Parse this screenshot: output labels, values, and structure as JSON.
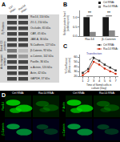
{
  "chart_data": [
    {
      "type": "blot",
      "title": "A",
      "categories": [
        "Rac14, 110 kDa",
        "ZO-1, 210 kDa",
        "Occludin, 65 kDa",
        "CAR, 45 kDa",
        "JAM-A, 36 kDa",
        "N-Cadherin, 127 kDa",
        "β-Catenin, 92 kDa",
        "α-Catenin, 102 kDa",
        "Paxillin, 36 kDa",
        "α-Actinin, 120 kDa",
        "Actin, 42 kDa",
        "GAPDH, 37 kDa"
      ],
      "series": [
        {
          "name": "Ctrl\nRNAi",
          "colors": [
            "#444444",
            "#444444",
            "#444444",
            "#444444",
            "#444444",
            "#444444",
            "#777777",
            "#555555",
            "#444444",
            "#444444",
            "#444444",
            "#444444"
          ]
        },
        {
          "name": "Rac14\nRNAi",
          "colors": [
            "#444444",
            "#444444",
            "#444444",
            "#444444",
            "#444444",
            "#444444",
            "#bbbbbb",
            "#999999",
            "#444444",
            "#444444",
            "#444444",
            "#444444"
          ]
        }
      ],
      "annotations": [
        "Tj Proteins",
        "Basal CE\nproteins",
        "Acto-myosin\nrelated"
      ]
    },
    {
      "type": "bar",
      "title": "B",
      "categories": [
        "Rac14",
        "β-Catenin"
      ],
      "series": [
        {
          "name": "Ctrl RNAi",
          "color": "#1a1a1a",
          "values": [
            1.0,
            1.0
          ]
        },
        {
          "name": "Rac14 RNAi",
          "color": "#888888",
          "values": [
            0.22,
            0.3
          ]
        }
      ],
      "ylabel": "Relative protein level\n(arbitrary unit)",
      "ylim": [
        0,
        1.35
      ],
      "yticks": [
        {
          "value": 0,
          "label": "0.0"
        },
        0.5,
        {
          "value": 1.0,
          "label": "1.0"
        }
      ],
      "annotations": [
        "**",
        "**"
      ],
      "legend": "upper right",
      "grid": false
    },
    {
      "type": "line",
      "title": "C",
      "x": [
        1,
        2,
        3,
        4,
        5,
        6,
        7
      ],
      "series": [
        {
          "name": "Ctrl RNAi",
          "color": "#333333",
          "values": [
            27,
            35,
            58,
            52,
            44,
            38,
            32
          ],
          "marker": "square",
          "line_style": "solid"
        },
        {
          "name": "Rac14 RNAi",
          "color": "#cc2200",
          "values": [
            22,
            30,
            50,
            44,
            36,
            30,
            25
          ],
          "marker": "circle",
          "line_style": "solid"
        }
      ],
      "xlabel": "Time of Semd cells in\nculture (Day)",
      "ylabel": "% Confluence\n(Ohms x cm²)",
      "xlim": [
        0.5,
        7.5
      ],
      "ylim": [
        20,
        65
      ],
      "xticks": [
        1,
        2,
        3,
        4,
        5,
        6,
        7
      ],
      "yticks": [
        20,
        30,
        40,
        50,
        60
      ],
      "annotations": [
        {
          "text": "Transfection",
          "x": 2.2,
          "y": 52,
          "text_x": 3.0,
          "text_y": 60,
          "color": "#333399"
        }
      ],
      "legend": "upper right",
      "grid": false
    },
    {
      "type": "image",
      "title": "D",
      "categories": [
        "Ctrl RNAi",
        "Rac14 RNAi",
        "Ctrl RNAi",
        "Rac14 RNAi"
      ],
      "annotations": [
        "Rac14",
        "β-Catenin",
        "F-Actin",
        "α-Catenin"
      ]
    }
  ]
}
